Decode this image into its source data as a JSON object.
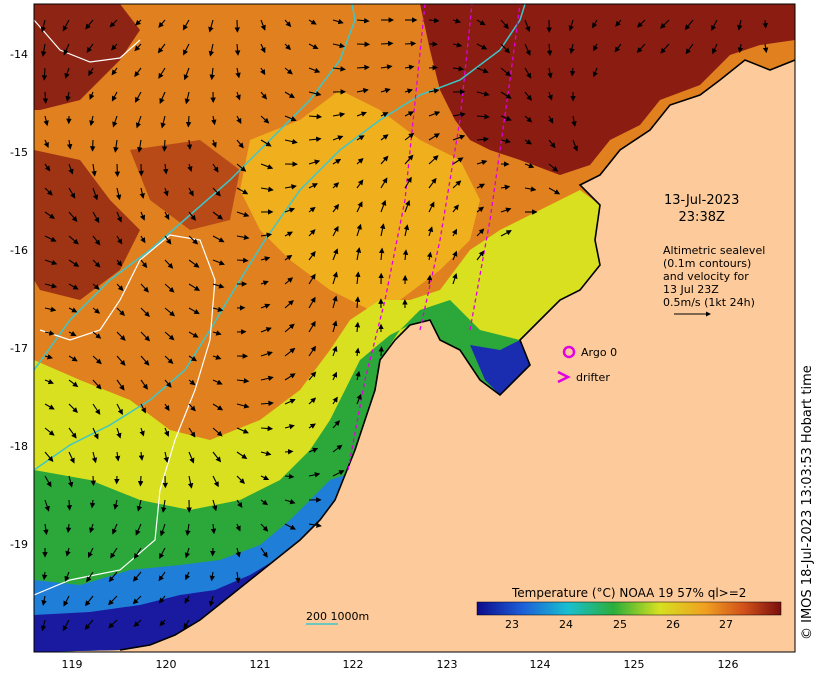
{
  "map": {
    "date_line1": "13-Jul-2023",
    "date_line2": "23:38Z",
    "altimetry_lines": [
      "Altimetric sealevel",
      "(0.1m contours)",
      "and velocity for",
      "13 Jul 23Z",
      "0.5m/s (1kt 24h)"
    ],
    "argo_label": "Argo 0",
    "drifter_label": "drifter",
    "scale_label": "200  1000m",
    "colorbar_title": "Temperature (°C) NOAA 19 57% ql>=2",
    "colorbar_ticks": [
      "23",
      "24",
      "25",
      "26",
      "27"
    ],
    "y_ticks": [
      "-14",
      "-15",
      "-16",
      "-17",
      "-18",
      "-19"
    ],
    "x_ticks": [
      "119",
      "120",
      "121",
      "122",
      "123",
      "124",
      "125",
      "126"
    ],
    "credit": "© IMOS 18-Jul-2023 13:03:53 Hobart time",
    "colors": {
      "land": "#fdcb9b",
      "hot": "#8a1c12",
      "warm": "#d9661a",
      "mid": "#f0b01e",
      "yellow": "#d8e020",
      "green": "#2ca83a",
      "cool": "#1e7ed8",
      "cold": "#1a1aa0",
      "contour": "#3ec6c8",
      "argo": "#e000e0"
    },
    "icons": [
      "argo-ring-icon",
      "drifter-chevron-icon",
      "velocity-arrow-icon"
    ]
  }
}
